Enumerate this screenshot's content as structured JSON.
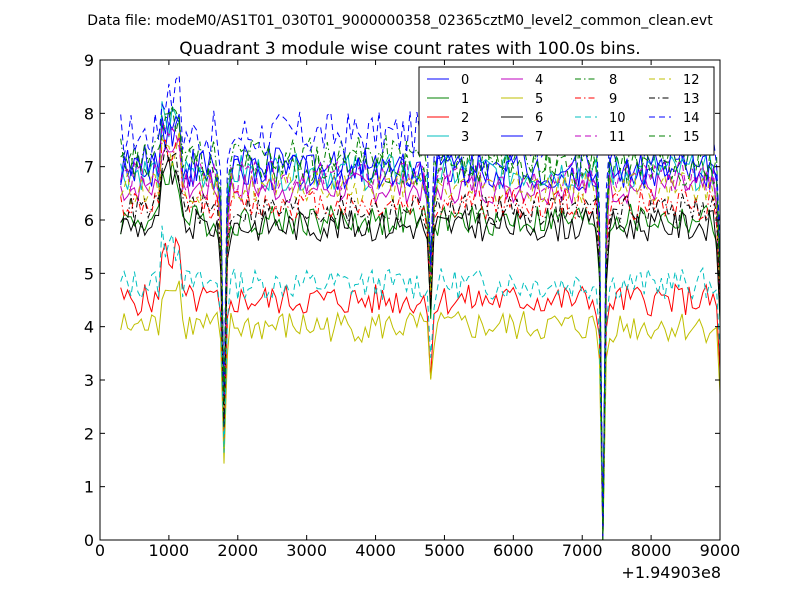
{
  "figure": {
    "suptitle": "Data file: modeM0/AS1T01_030T01_9000000358_02365cztM0_level2_common_clean.evt"
  },
  "chart_data": {
    "type": "line",
    "title": "Quadrant 3 module wise count rates with 100.0s bins.",
    "xlabel": "",
    "ylabel": "",
    "xlim": [
      0,
      9000
    ],
    "ylim": [
      0,
      9
    ],
    "x_offset_label": "+1.94903e8",
    "xticks": [
      "0",
      "1000",
      "2000",
      "3000",
      "4000",
      "5000",
      "6000",
      "7000",
      "8000",
      "9000"
    ],
    "yticks": [
      "0",
      "1",
      "2",
      "3",
      "4",
      "5",
      "6",
      "7",
      "8",
      "9"
    ],
    "legend_location": "top-right",
    "legend_columns": 4,
    "x_start": 300,
    "x_step": 50,
    "dips": [
      [
        1800,
        0.35
      ],
      [
        4800,
        0.72
      ],
      [
        7300,
        0.0
      ],
      [
        9000,
        0.7
      ]
    ],
    "series": [
      {
        "name": "0",
        "color": "#0000ff",
        "dash": "solid",
        "level": 6.9,
        "amp": 0.35
      },
      {
        "name": "1",
        "color": "#008000",
        "dash": "solid",
        "level": 6.0,
        "amp": 0.3
      },
      {
        "name": "2",
        "color": "#ff0000",
        "dash": "solid",
        "level": 4.5,
        "amp": 0.3
      },
      {
        "name": "3",
        "color": "#00bfbf",
        "dash": "solid",
        "level": 6.9,
        "amp": 0.35
      },
      {
        "name": "4",
        "color": "#bf00bf",
        "dash": "solid",
        "level": 6.6,
        "amp": 0.3
      },
      {
        "name": "5",
        "color": "#bfbf00",
        "dash": "solid",
        "level": 4.0,
        "amp": 0.3
      },
      {
        "name": "6",
        "color": "#000000",
        "dash": "solid",
        "level": 5.9,
        "amp": 0.3
      },
      {
        "name": "7",
        "color": "#0000ff",
        "dash": "solid",
        "level": 7.0,
        "amp": 0.4
      },
      {
        "name": "8",
        "color": "#008000",
        "dash": "dashdot",
        "level": 7.2,
        "amp": 0.4
      },
      {
        "name": "9",
        "color": "#ff0000",
        "dash": "dashdot",
        "level": 6.3,
        "amp": 0.3
      },
      {
        "name": "10",
        "color": "#00bfbf",
        "dash": "dashed",
        "level": 4.8,
        "amp": 0.3
      },
      {
        "name": "11",
        "color": "#bf00bf",
        "dash": "dashed",
        "level": 6.8,
        "amp": 0.3
      },
      {
        "name": "12",
        "color": "#bfbf00",
        "dash": "dashed",
        "level": 6.6,
        "amp": 0.3
      },
      {
        "name": "13",
        "color": "#000000",
        "dash": "dashdot",
        "level": 6.2,
        "amp": 0.3
      },
      {
        "name": "14",
        "color": "#0000ff",
        "dash": "dashed",
        "level": 7.6,
        "amp": 0.45
      },
      {
        "name": "15",
        "color": "#008000",
        "dash": "dashed",
        "level": 7.0,
        "amp": 0.35
      }
    ]
  }
}
